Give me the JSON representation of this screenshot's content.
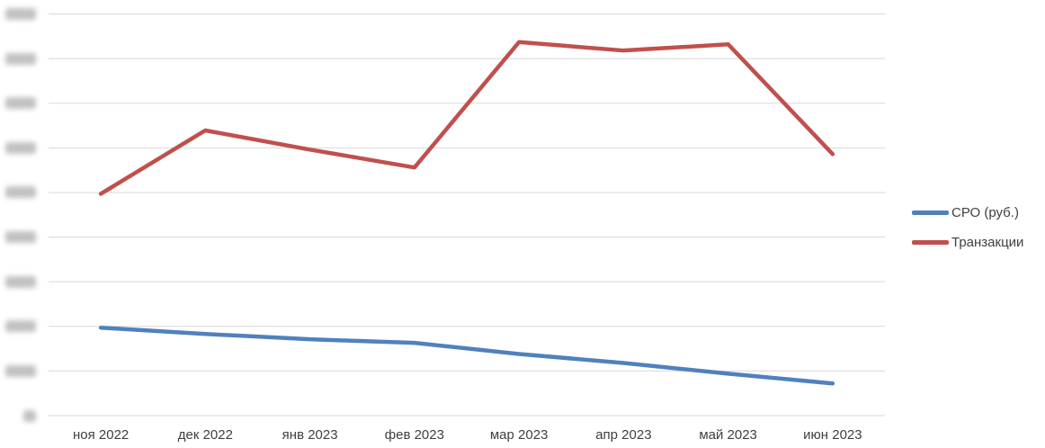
{
  "chart_data": {
    "type": "line",
    "title": "",
    "xlabel": "",
    "ylabel": "",
    "categories": [
      "ноя 2022",
      "дек 2022",
      "янв 2023",
      "фев 2023",
      "мар 2023",
      "апр 2023",
      "май 2023",
      "июн 2023"
    ],
    "series": [
      {
        "name": "СРО (руб.)",
        "color": "#4F81BD",
        "values": [
          1.97,
          1.83,
          1.71,
          1.63,
          1.38,
          1.18,
          0.94,
          0.72
        ]
      },
      {
        "name": "Транзакции",
        "color": "#C0504D",
        "values": [
          4.97,
          6.39,
          5.96,
          5.56,
          8.37,
          8.18,
          8.32,
          5.86
        ]
      }
    ],
    "ylim": [
      0,
      9
    ],
    "y_ticks": {
      "count": 10,
      "labels_blurred": true
    },
    "grid": "horizontal",
    "legend_position": "right-middle",
    "note": "Y-axis tick labels are blurred/illegible in the source screenshot; series values are expressed in gridline units (0 = bottom gridline, 9 = top gridline)."
  },
  "colors": {
    "background": "#ffffff",
    "gridline": "#d9d9d9",
    "axis_label_text": "#3f3f3f",
    "legend_text": "#404040",
    "blurred_label": "#8f8f8f"
  }
}
